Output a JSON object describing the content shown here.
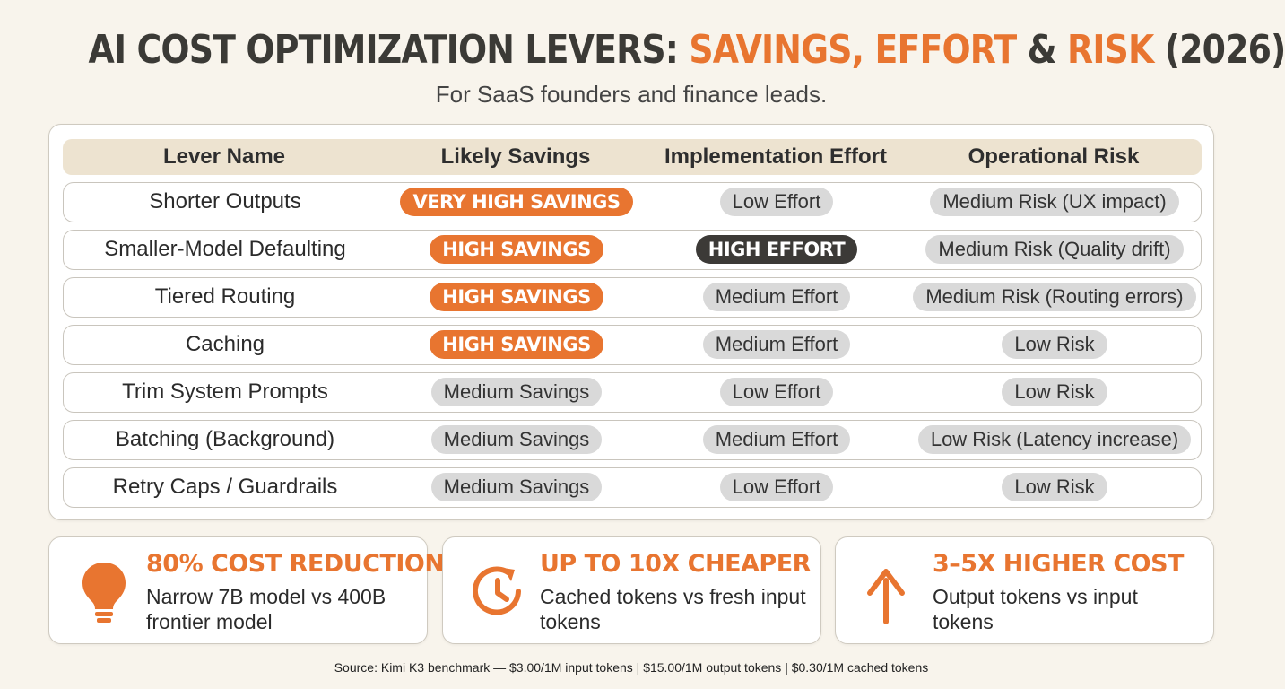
{
  "title": {
    "part1": "AI COST OPTIMIZATION LEVERS: ",
    "savings": "SAVINGS,",
    "part2": " ",
    "effort": "EFFORT",
    "part3": " & ",
    "risk": "RISK",
    "part4": " (2026)"
  },
  "subtitle": "For SaaS founders and finance leads.",
  "table": {
    "headers": [
      "Lever Name",
      "Likely Savings",
      "Implementation Effort",
      "Operational Risk"
    ],
    "rows": [
      {
        "lever": "Shorter Outputs",
        "savings": "VERY HIGH SAVINGS",
        "effort": "Low Effort",
        "risk": "Medium Risk (UX impact)"
      },
      {
        "lever": "Smaller-Model Defaulting",
        "savings": "HIGH SAVINGS",
        "effort": "HIGH EFFORT",
        "risk": "Medium Risk (Quality drift)"
      },
      {
        "lever": "Tiered Routing",
        "savings": "HIGH SAVINGS",
        "effort": "Medium Effort",
        "risk": "Medium Risk (Routing errors)"
      },
      {
        "lever": "Caching",
        "savings": "HIGH SAVINGS",
        "effort": "Medium Effort",
        "risk": "Low Risk"
      },
      {
        "lever": "Trim System Prompts",
        "savings": "Medium Savings",
        "effort": "Low Effort",
        "risk": "Low Risk"
      },
      {
        "lever": "Batching (Background)",
        "savings": "Medium Savings",
        "effort": "Medium Effort",
        "risk": "Low Risk (Latency increase)"
      },
      {
        "lever": "Retry Caps / Guardrails",
        "savings": "Medium Savings",
        "effort": "Low Effort",
        "risk": "Low Risk"
      }
    ]
  },
  "stats": [
    {
      "icon": "lightbulb-icon",
      "headline": "80% COST REDUCTION",
      "desc": "Narrow 7B model vs 400B frontier model"
    },
    {
      "icon": "clock-refresh-icon",
      "headline": "UP TO 10X CHEAPER",
      "desc": "Cached tokens vs fresh input tokens"
    },
    {
      "icon": "arrow-up-icon",
      "headline": "3–5X HIGHER COST",
      "desc": "Output tokens vs input tokens"
    }
  ],
  "source": "Source: Kimi K3 benchmark — $3.00/1M input tokens | $15.00/1M output tokens | $0.30/1M cached tokens",
  "colors": {
    "accent": "#e87530",
    "dark": "#3c3a37",
    "pill_gray": "#d9d9d9",
    "header_bg": "#ede3d0",
    "page_bg": "#f8f4ec"
  }
}
